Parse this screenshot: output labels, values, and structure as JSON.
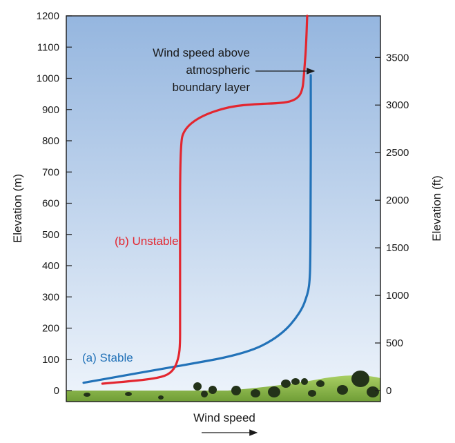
{
  "chart_data": {
    "type": "line",
    "xlabel": "Wind speed",
    "ylabel_left": "Elevation (m)",
    "ylabel_right": "Elevation (ft)",
    "ylim_m": [
      0,
      1200
    ],
    "y_ticks_m": [
      0,
      100,
      200,
      300,
      400,
      500,
      600,
      700,
      800,
      900,
      1000,
      1100,
      1200
    ],
    "y_ticks_ft": [
      0,
      500,
      1000,
      1500,
      2000,
      2500,
      3000,
      3500
    ],
    "x_ticks": [],
    "grid": false,
    "annotation": {
      "lines": [
        "Wind speed above",
        "atmospheric",
        "boundary layer"
      ]
    },
    "series": [
      {
        "name": "(a) Stable",
        "color": "#2272b8",
        "x": [
          0.0,
          0.15,
          0.3,
          0.45,
          0.6,
          0.72,
          0.8,
          0.86,
          0.9,
          0.93,
          0.945,
          0.955,
          0.96,
          0.963,
          0.965,
          0.965,
          0.965
        ],
        "y": [
          25,
          45,
          65,
          85,
          105,
          130,
          160,
          195,
          230,
          265,
          295,
          320,
          350,
          400,
          600,
          900,
          1010
        ]
      },
      {
        "name": "(b) Unstable",
        "color": "#e3262f",
        "x": [
          0.08,
          0.2,
          0.3,
          0.36,
          0.39,
          0.405,
          0.41,
          0.41,
          0.41,
          0.41,
          0.43,
          0.5,
          0.62,
          0.74,
          0.82,
          0.88,
          0.915,
          0.93,
          0.935,
          0.94,
          0.945,
          0.95
        ],
        "y": [
          22,
          30,
          38,
          50,
          75,
          110,
          150,
          210,
          400,
          790,
          840,
          880,
          910,
          918,
          920,
          925,
          940,
          965,
          1000,
          1050,
          1100,
          1200
        ]
      }
    ],
    "colors": {
      "sky_top": "#95b6df",
      "sky_bottom": "#eef4fb",
      "ground": "#8fbf4a",
      "frame": "#1a1a1a"
    }
  }
}
